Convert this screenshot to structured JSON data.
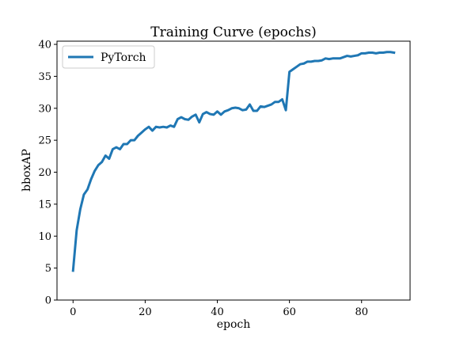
{
  "chart_data": {
    "type": "line",
    "title": "Training Curve (epochs)",
    "xlabel": "epoch",
    "ylabel": "bboxAP",
    "xlim": [
      -4.45,
      93.45
    ],
    "ylim": [
      0,
      40.5
    ],
    "xticks": [
      0,
      20,
      40,
      60,
      80
    ],
    "yticks": [
      0,
      5,
      10,
      15,
      20,
      25,
      30,
      35,
      40
    ],
    "grid": false,
    "legend_position": "top-left",
    "series": [
      {
        "name": "PyTorch",
        "color": "#1f77b4",
        "x": [
          0,
          1,
          2,
          3,
          4,
          5,
          6,
          7,
          8,
          9,
          10,
          11,
          12,
          13,
          14,
          15,
          16,
          17,
          18,
          19,
          20,
          21,
          22,
          23,
          24,
          25,
          26,
          27,
          28,
          29,
          30,
          31,
          32,
          33,
          34,
          35,
          36,
          37,
          38,
          39,
          40,
          41,
          42,
          43,
          44,
          45,
          46,
          47,
          48,
          49,
          50,
          51,
          52,
          53,
          54,
          55,
          56,
          57,
          58,
          59,
          60,
          61,
          62,
          63,
          64,
          65,
          66,
          67,
          68,
          69,
          70,
          71,
          72,
          73,
          74,
          75,
          76,
          77,
          78,
          79,
          80,
          81,
          82,
          83,
          84,
          85,
          86,
          87,
          88,
          89
        ],
        "y": [
          4.6,
          10.9,
          14.2,
          16.5,
          17.3,
          18.9,
          20.2,
          21.1,
          21.6,
          22.6,
          22.1,
          23.6,
          23.9,
          23.6,
          24.4,
          24.4,
          25.0,
          25.0,
          25.7,
          26.2,
          26.7,
          27.1,
          26.5,
          27.1,
          27.0,
          27.1,
          27.0,
          27.3,
          27.1,
          28.3,
          28.6,
          28.3,
          28.2,
          28.7,
          29.0,
          27.8,
          29.1,
          29.4,
          29.1,
          29.0,
          29.5,
          29.0,
          29.5,
          29.7,
          30.0,
          30.1,
          30.0,
          29.7,
          29.8,
          30.6,
          29.6,
          29.6,
          30.3,
          30.2,
          30.4,
          30.6,
          31.0,
          31.0,
          31.4,
          29.7,
          35.7,
          36.1,
          36.5,
          36.9,
          37.0,
          37.3,
          37.3,
          37.4,
          37.4,
          37.5,
          37.8,
          37.7,
          37.8,
          37.8,
          37.8,
          38.0,
          38.2,
          38.1,
          38.2,
          38.3,
          38.6,
          38.6,
          38.7,
          38.7,
          38.6,
          38.7,
          38.7,
          38.8,
          38.8,
          38.7
        ]
      }
    ]
  }
}
